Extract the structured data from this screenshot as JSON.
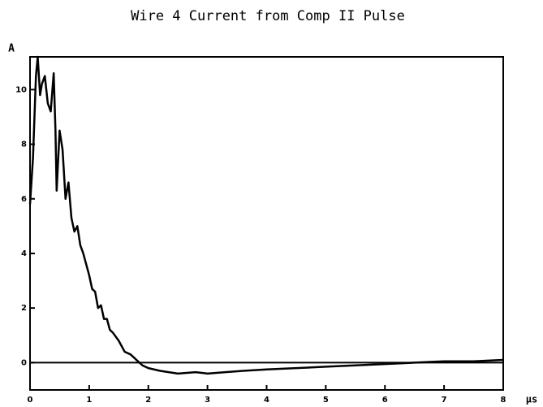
{
  "chart_data": {
    "type": "line",
    "title": "Wire 4 Current from Comp II Pulse",
    "y_label": "A",
    "x_label": "μs",
    "x": [
      0,
      0.05,
      0.1,
      0.13,
      0.17,
      0.2,
      0.25,
      0.3,
      0.35,
      0.4,
      0.43,
      0.45,
      0.5,
      0.55,
      0.6,
      0.65,
      0.7,
      0.75,
      0.8,
      0.85,
      0.9,
      0.95,
      1.0,
      1.05,
      1.1,
      1.15,
      1.2,
      1.25,
      1.3,
      1.35,
      1.4,
      1.5,
      1.6,
      1.7,
      1.8,
      1.9,
      2.0,
      2.2,
      2.5,
      2.8,
      3.0,
      3.3,
      3.6,
      4.0,
      4.5,
      5.0,
      5.5,
      6.0,
      6.5,
      7.0,
      7.5,
      8.0
    ],
    "values": [
      5.8,
      7.5,
      10.5,
      11.2,
      9.8,
      10.2,
      10.5,
      9.5,
      9.2,
      10.6,
      8.5,
      6.3,
      8.5,
      7.8,
      6.0,
      6.6,
      5.3,
      4.8,
      5.0,
      4.3,
      4.0,
      3.6,
      3.2,
      2.7,
      2.6,
      2.0,
      2.1,
      1.6,
      1.6,
      1.2,
      1.1,
      0.8,
      0.4,
      0.3,
      0.1,
      -0.1,
      -0.2,
      -0.3,
      -0.4,
      -0.35,
      -0.4,
      -0.35,
      -0.3,
      -0.25,
      -0.2,
      -0.15,
      -0.1,
      -0.05,
      0.0,
      0.05,
      0.05,
      0.1
    ],
    "color": "#000000",
    "xlim": [
      0,
      8
    ],
    "xticks": [
      0,
      1,
      2,
      3,
      4,
      5,
      6,
      7,
      8
    ],
    "ylim": [
      -1,
      11.2
    ],
    "yticks": [
      0,
      2,
      4,
      6,
      8,
      10
    ]
  }
}
